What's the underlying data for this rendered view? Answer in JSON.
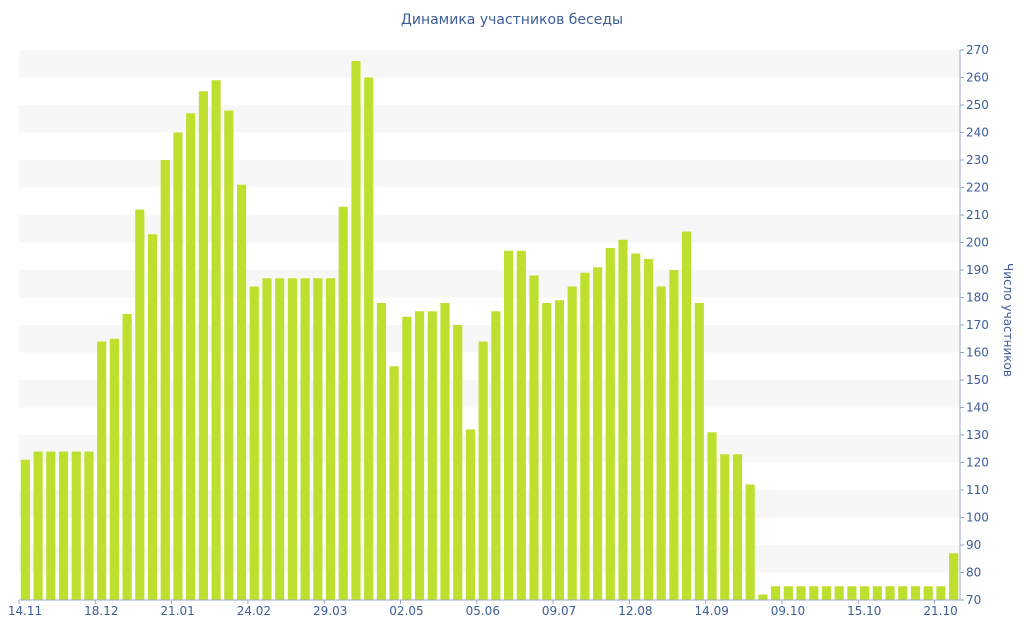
{
  "chart_data": {
    "type": "bar",
    "title": "Динамика участников беседы",
    "xlabel": "",
    "ylabel": "Число участников",
    "ylim": [
      70,
      270
    ],
    "y_ticks": [
      70,
      80,
      90,
      100,
      110,
      120,
      130,
      140,
      150,
      160,
      170,
      180,
      190,
      200,
      210,
      220,
      230,
      240,
      250,
      260,
      270
    ],
    "y_axis_position": "right",
    "x_tick_labels": [
      {
        "label": "14.11",
        "index": 0
      },
      {
        "label": "18.12",
        "index": 6
      },
      {
        "label": "21.01",
        "index": 12
      },
      {
        "label": "24.02",
        "index": 18
      },
      {
        "label": "29.03",
        "index": 24
      },
      {
        "label": "02.05",
        "index": 30
      },
      {
        "label": "05.06",
        "index": 36
      },
      {
        "label": "09.07",
        "index": 42
      },
      {
        "label": "12.08",
        "index": 48
      },
      {
        "label": "14.09",
        "index": 54
      },
      {
        "label": "09.10",
        "index": 60
      },
      {
        "label": "15.10",
        "index": 66
      },
      {
        "label": "21.10",
        "index": 72
      }
    ],
    "values": [
      121,
      124,
      124,
      124,
      124,
      124,
      164,
      165,
      174,
      212,
      203,
      230,
      240,
      247,
      255,
      259,
      248,
      221,
      184,
      187,
      187,
      187,
      187,
      187,
      187,
      213,
      266,
      260,
      178,
      155,
      173,
      175,
      175,
      178,
      170,
      132,
      164,
      175,
      197,
      197,
      188,
      178,
      179,
      184,
      189,
      191,
      198,
      201,
      196,
      194,
      184,
      190,
      204,
      178,
      131,
      123,
      123,
      112,
      72,
      75,
      75,
      75,
      75,
      75,
      75,
      75,
      75,
      75,
      75,
      75,
      75,
      75,
      75,
      87
    ],
    "grid": true,
    "legend": "none",
    "colors": {
      "bar": "#bde02e",
      "text": "#3d5d99",
      "band": "#f7f7f7",
      "axis": "#9aa7c4"
    }
  }
}
